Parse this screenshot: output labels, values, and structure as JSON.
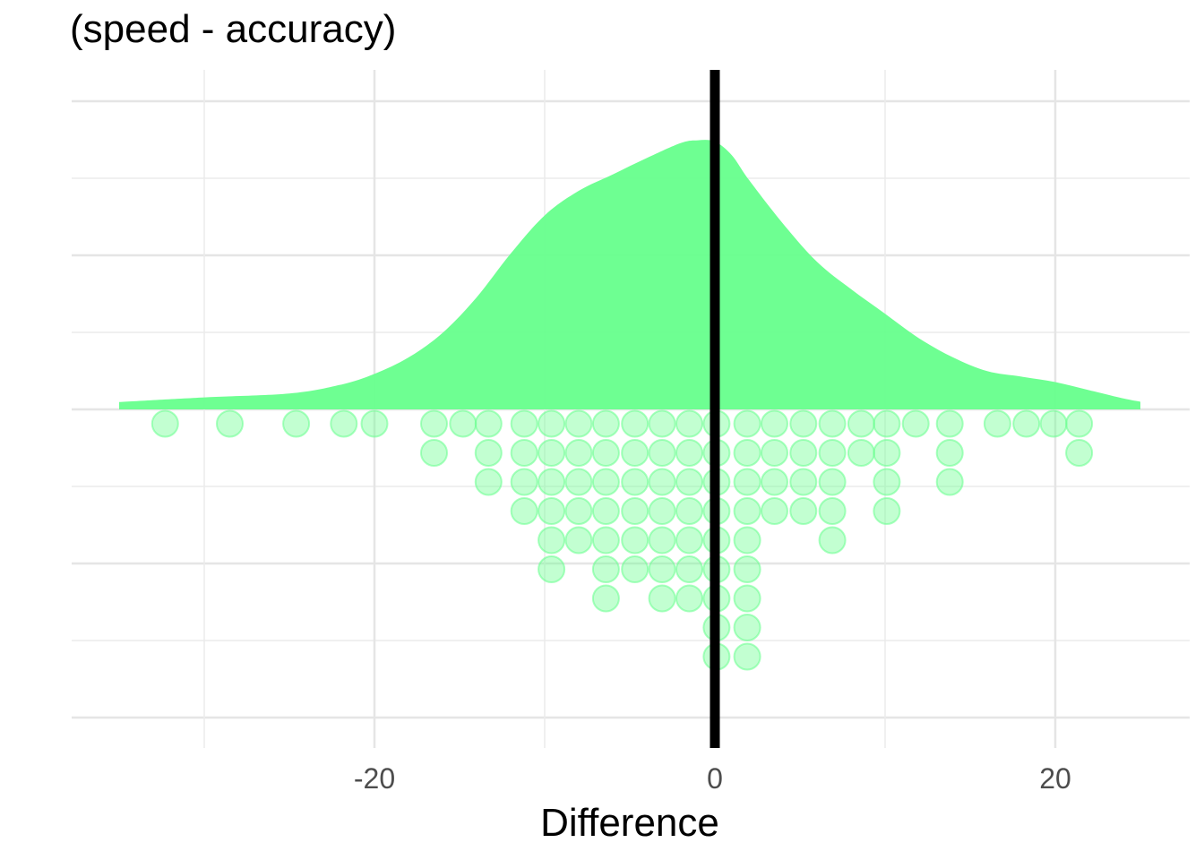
{
  "chart_data": {
    "type": "density + dotplot",
    "title": "(speed - accuracy)",
    "xlabel": "Difference",
    "ylabel": "",
    "xlim": [
      -38,
      28
    ],
    "x_ticks": [
      -20,
      0,
      20
    ],
    "x_tick_labels": [
      "-20",
      "0",
      "20"
    ],
    "grid": true,
    "reference_line": {
      "x": 0,
      "color": "#000000"
    },
    "fill_color": "#66ff8c",
    "dot_color": "#66ff8c",
    "density": {
      "x": [
        -35,
        -30,
        -25,
        -22,
        -20,
        -18,
        -16,
        -14,
        -12,
        -10,
        -8,
        -6,
        -4,
        -2,
        -1,
        0,
        1,
        2,
        4,
        6,
        8,
        10,
        12,
        14,
        16,
        18,
        20,
        22,
        24,
        25
      ],
      "y": [
        0.027,
        0.044,
        0.058,
        0.09,
        0.13,
        0.19,
        0.28,
        0.41,
        0.57,
        0.71,
        0.8,
        0.86,
        0.92,
        0.975,
        0.985,
        0.98,
        0.93,
        0.84,
        0.68,
        0.54,
        0.44,
        0.35,
        0.26,
        0.19,
        0.14,
        0.12,
        0.1,
        0.07,
        0.04,
        0.028
      ]
    },
    "dots": [
      {
        "x": -32.3,
        "count": 1
      },
      {
        "x": -28.5,
        "count": 1
      },
      {
        "x": -24.6,
        "count": 1
      },
      {
        "x": -21.8,
        "count": 1
      },
      {
        "x": -20.0,
        "count": 1
      },
      {
        "x": -16.5,
        "count": 2
      },
      {
        "x": -14.8,
        "count": 1
      },
      {
        "x": -13.3,
        "count": 3
      },
      {
        "x": -11.2,
        "count": 4
      },
      {
        "x": -9.6,
        "count": 6
      },
      {
        "x": -8.0,
        "count": 5
      },
      {
        "x": -6.4,
        "count": 7
      },
      {
        "x": -4.7,
        "count": 6
      },
      {
        "x": -3.1,
        "count": 7
      },
      {
        "x": -1.5,
        "count": 7
      },
      {
        "x": 0.1,
        "count": 9
      },
      {
        "x": 1.9,
        "count": 9
      },
      {
        "x": 3.5,
        "count": 4
      },
      {
        "x": 5.2,
        "count": 4
      },
      {
        "x": 6.9,
        "count": 5
      },
      {
        "x": 8.6,
        "count": 2
      },
      {
        "x": 10.1,
        "count": 4
      },
      {
        "x": 11.8,
        "count": 1
      },
      {
        "x": 13.8,
        "count": 3
      },
      {
        "x": 16.6,
        "count": 1
      },
      {
        "x": 18.3,
        "count": 1
      },
      {
        "x": 19.9,
        "count": 1
      },
      {
        "x": 21.4,
        "count": 2
      }
    ]
  }
}
